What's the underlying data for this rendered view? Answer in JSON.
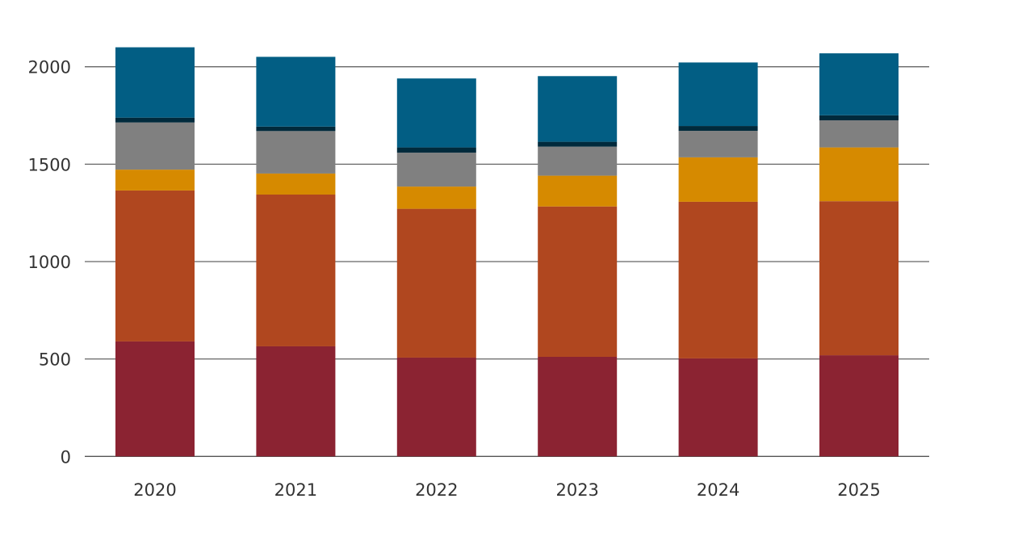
{
  "chart_data": {
    "type": "bar",
    "stacked": true,
    "title": "",
    "xlabel": "",
    "ylabel": "",
    "ylim": [
      0,
      2150
    ],
    "yticks": [
      0,
      500,
      1000,
      1500,
      2000
    ],
    "grid": true,
    "legend": "none",
    "categories": [
      "2020",
      "2021",
      "2022",
      "2023",
      "2024",
      "2025"
    ],
    "series": [
      {
        "color": "#8B2332",
        "values": [
          590,
          565,
          507,
          511,
          503,
          519
        ]
      },
      {
        "color": "#B0471F",
        "values": [
          775,
          779,
          764,
          772,
          804,
          791
        ]
      },
      {
        "color": "#D68A00",
        "values": [
          107,
          108,
          114,
          158,
          228,
          276
        ]
      },
      {
        "color": "#808080",
        "values": [
          242,
          218,
          174,
          149,
          136,
          139
        ]
      },
      {
        "color": "#002A3C",
        "values": [
          25,
          23,
          27,
          25,
          25,
          26
        ]
      },
      {
        "color": "#025E84",
        "values": [
          361,
          358,
          354,
          337,
          326,
          318
        ]
      }
    ]
  }
}
